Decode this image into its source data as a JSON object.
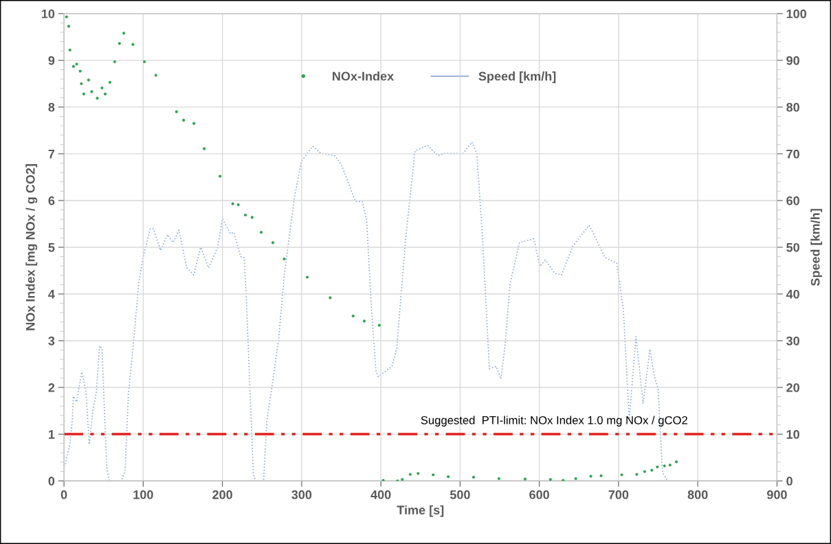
{
  "chart_data": {
    "type": "scatter",
    "xlabel": "Time [s]",
    "ylabel": "NOx Index [mg NOx / g CO2]",
    "y2label": "Speed [km/h]",
    "xlim": [
      0,
      900
    ],
    "xticks": [
      0,
      100,
      200,
      300,
      400,
      500,
      600,
      700,
      800,
      900
    ],
    "ylim": [
      0,
      10
    ],
    "yticks": [
      0,
      1,
      2,
      3,
      4,
      5,
      6,
      7,
      8,
      9,
      10
    ],
    "y2lim": [
      0,
      100
    ],
    "y2ticks": [
      0,
      10,
      20,
      30,
      40,
      50,
      60,
      70,
      80,
      90,
      100
    ],
    "grid": true,
    "legend": "top",
    "series": [
      {
        "name": "NOx-Index",
        "marker": "circle",
        "color": "#2fa651",
        "x": [
          3.2,
          6,
          7.5,
          12,
          16,
          20.5,
          22,
          25,
          31,
          35,
          42,
          48,
          52,
          58,
          64,
          70,
          75.5,
          87,
          101.5,
          116,
          142,
          151,
          164,
          177,
          197,
          213,
          220,
          229,
          237.5,
          249,
          263.6,
          278,
          307,
          336,
          365,
          379,
          398,
          403,
          421,
          427,
          437,
          447,
          466,
          485,
          517,
          549,
          582,
          614,
          630,
          646,
          665,
          678,
          704,
          723,
          733,
          742,
          749,
          758,
          765,
          773
        ],
        "values": [
          9.93,
          9.73,
          9.22,
          8.87,
          8.92,
          8.77,
          8.5,
          8.28,
          8.58,
          8.33,
          8.19,
          8.41,
          8.28,
          8.53,
          8.97,
          9.36,
          9.58,
          9.34,
          8.97,
          8.68,
          7.9,
          7.72,
          7.65,
          7.11,
          6.52,
          5.93,
          5.91,
          5.69,
          5.64,
          5.32,
          5.1,
          4.75,
          4.36,
          3.92,
          3.53,
          3.42,
          3.33,
          0.01,
          0,
          0.03,
          0.14,
          0.16,
          0.13,
          0.09,
          0.08,
          0.05,
          0.04,
          0.03,
          0.01,
          0.05,
          0.1,
          0.11,
          0.13,
          0.14,
          0.2,
          0.23,
          0.3,
          0.32,
          0.34,
          0.41
        ]
      },
      {
        "name": "Speed [km/h]",
        "type": "line",
        "axis": "y2",
        "line_style": "dotted",
        "color": "#8eaadb",
        "x": [
          0,
          1.7,
          4.6,
          7.5,
          10.4,
          11.9,
          16,
          19,
          22.6,
          27.8,
          32,
          36.5,
          40.8,
          45,
          48,
          51,
          54,
          57,
          72,
          77,
          81.3,
          88.5,
          94.3,
          99,
          103,
          108.8,
          113,
          121.8,
          130.5,
          137.8,
          145,
          155,
          163.8,
          172.5,
          182.5,
          194,
          200,
          210,
          214.4,
          223,
          227.4,
          230,
          239,
          242,
          252,
          256,
          262,
          271,
          278,
          291,
          299.7,
          314,
          324,
          341.8,
          350.4,
          367.8,
          376.5,
          382,
          388,
          393.8,
          396.7,
          414,
          420,
          431.4,
          443,
          459,
          472,
          480.6,
          503.7,
          515,
          521,
          528,
          537,
          545.7,
          551.5,
          557,
          563,
          575,
          593,
          600.7,
          607.6,
          619.5,
          628,
          642.5,
          663,
          683,
          697.7,
          706,
          713.5,
          722,
          731,
          739.6,
          745,
          750,
          755.5,
          762,
          770
        ],
        "values": [
          3,
          3.4,
          5.9,
          7.8,
          12.8,
          18.1,
          16.9,
          20.1,
          23.3,
          19.1,
          7.8,
          15.2,
          18.9,
          28.9,
          28.4,
          15.2,
          2.9,
          0,
          0,
          2,
          18.6,
          30.9,
          42.4,
          47,
          50,
          53.9,
          53.9,
          49.3,
          52.7,
          51,
          53.7,
          45.6,
          44.1,
          50,
          45.6,
          50,
          56.1,
          52.9,
          53.2,
          48,
          47.8,
          39.7,
          1.5,
          0,
          0,
          12.7,
          19.6,
          30.4,
          44,
          60.8,
          68.4,
          71.6,
          70.1,
          69.6,
          67.6,
          59.8,
          59.8,
          55.9,
          37.3,
          23.5,
          22.3,
          24.5,
          28.4,
          52,
          70.6,
          71.8,
          69.6,
          70.1,
          70.1,
          72.5,
          70.1,
          52.9,
          24,
          24.5,
          21.8,
          29.4,
          42.2,
          51,
          51.8,
          45.9,
          47.3,
          44.4,
          44.1,
          50.3,
          54.7,
          47.8,
          46.6,
          36.8,
          13.2,
          30.9,
          16.5,
          28.2,
          22.5,
          19.6,
          1.8,
          0,
          0
        ]
      }
    ],
    "ref_lines": [
      {
        "axis": "y",
        "value": 1,
        "label": "Suggested  PTI-limit: NOx Index 1.0 mg NOx / gCO2",
        "color": "#e0201b",
        "line_style": "dashdot"
      }
    ]
  }
}
